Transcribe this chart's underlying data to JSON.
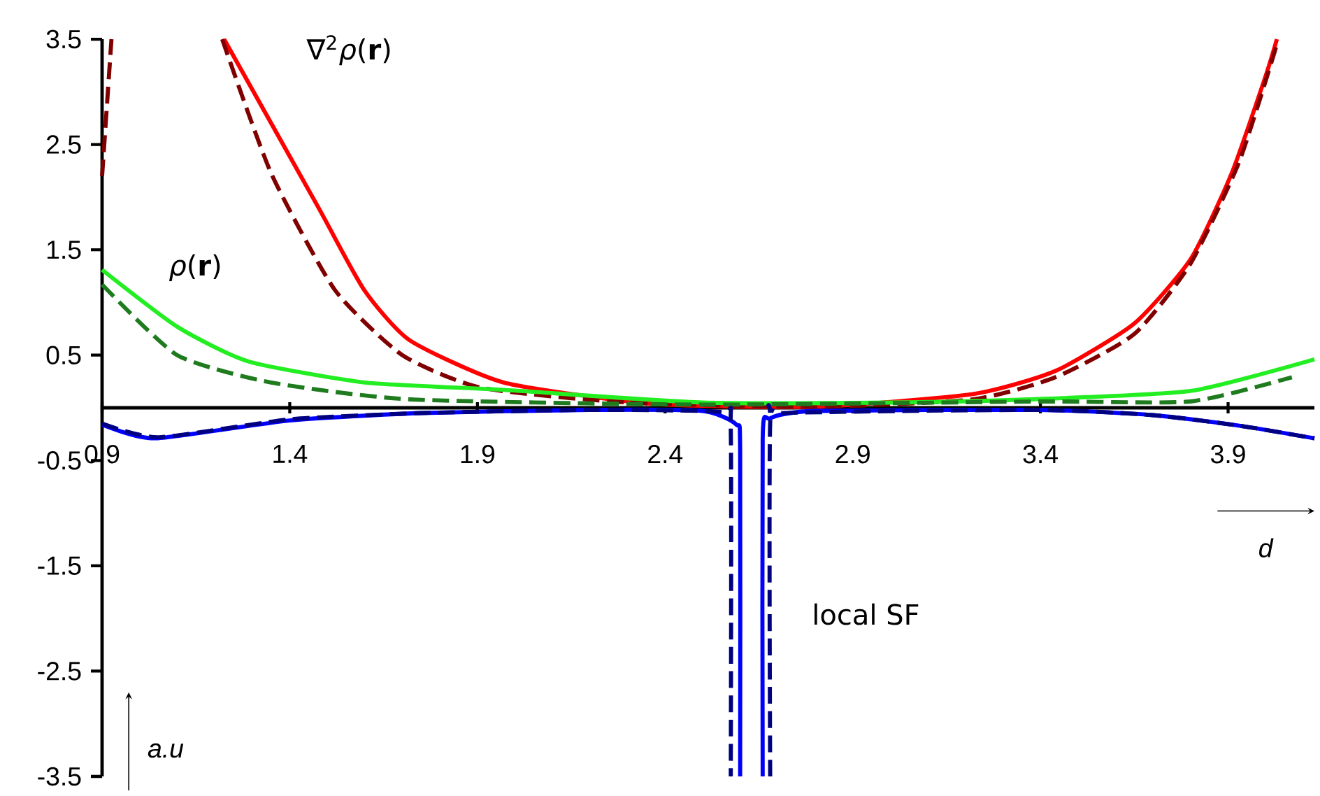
{
  "chart_data": {
    "type": "line",
    "xlabel": "*d*",
    "ylabel": "*a.u*",
    "xlim": [
      0.9,
      4.13
    ],
    "ylim": [
      -3.5,
      3.5
    ],
    "xticks": [
      0.9,
      1.4,
      1.9,
      2.4,
      2.9,
      3.4,
      3.9
    ],
    "yticks": [
      -3.5,
      -2.5,
      -1.5,
      -0.5,
      0.5,
      1.5,
      2.5,
      3.5
    ],
    "annotations": [
      "∇$^{2}$*ρ*(**r**)",
      "*ρ*(**r**)",
      "local SF"
    ],
    "series": [
      {
        "color": "#ff0000",
        "line_style": "solid",
        "x": [
          1.225,
          1.475,
          1.598,
          1.72,
          1.97,
          2.36,
          2.8,
          3.22,
          3.44,
          3.65,
          3.8,
          3.91,
          4.0,
          4.03
        ],
        "values": [
          3.5,
          1.91,
          1.12,
          0.64,
          0.24,
          0.04,
          0.01,
          0.13,
          0.35,
          0.8,
          1.41,
          2.23,
          3.15,
          3.5
        ]
      },
      {
        "color": "#800000",
        "line_style": "dashed",
        "x": [
          0.9,
          0.925,
          1.0,
          1.22,
          1.35,
          1.52,
          1.7,
          1.91,
          2.3,
          2.8,
          3.22,
          3.44,
          3.65,
          3.8,
          3.93,
          4.03
        ],
        "values": [
          2.2,
          3.5,
          null,
          3.5,
          2.23,
          1.12,
          0.5,
          0.19,
          0.05,
          0.01,
          0.08,
          0.29,
          0.7,
          1.37,
          2.34,
          3.45
        ]
      },
      {
        "color": "#22ee22",
        "line_style": "solid",
        "x": [
          0.9,
          1.1,
          1.29,
          1.6,
          1.97,
          2.5,
          3.0,
          3.37,
          3.8,
          4.13
        ],
        "values": [
          1.31,
          0.77,
          0.44,
          0.24,
          0.17,
          0.05,
          0.05,
          0.08,
          0.16,
          0.46
        ]
      },
      {
        "color": "#1e7b1e",
        "line_style": "dashed",
        "x": [
          0.9,
          1.1,
          1.35,
          1.72,
          2.5,
          3.4,
          3.8,
          4.07
        ],
        "values": [
          1.17,
          0.5,
          0.24,
          0.08,
          0.03,
          0.06,
          0.06,
          0.29
        ]
      },
      {
        "color": "#0000ff",
        "line_style": "solid",
        "x": [
          0.9,
          1.04,
          1.4,
          1.75,
          2.2,
          2.5,
          2.59,
          2.6,
          2.6,
          2.63,
          2.66,
          2.66,
          2.68,
          2.8,
          3.4,
          3.7,
          3.93,
          4.13
        ],
        "values": [
          -0.16,
          -0.29,
          -0.12,
          -0.05,
          -0.02,
          -0.03,
          -0.16,
          -0.4,
          -3.5,
          null,
          -3.5,
          -0.3,
          -0.1,
          -0.03,
          -0.02,
          -0.07,
          -0.17,
          -0.29
        ]
      },
      {
        "color": "#000080",
        "line_style": "dashed",
        "x": [
          0.9,
          1.05,
          1.4,
          1.75,
          2.2,
          2.55,
          2.575,
          2.575,
          2.63,
          2.68,
          2.68,
          2.72,
          3.4,
          3.7,
          3.93,
          4.13
        ],
        "values": [
          -0.15,
          -0.28,
          -0.11,
          -0.05,
          -0.02,
          -0.04,
          -0.2,
          -3.5,
          null,
          -3.5,
          -0.15,
          -0.05,
          -0.02,
          -0.07,
          -0.17,
          -0.29
        ]
      }
    ]
  }
}
